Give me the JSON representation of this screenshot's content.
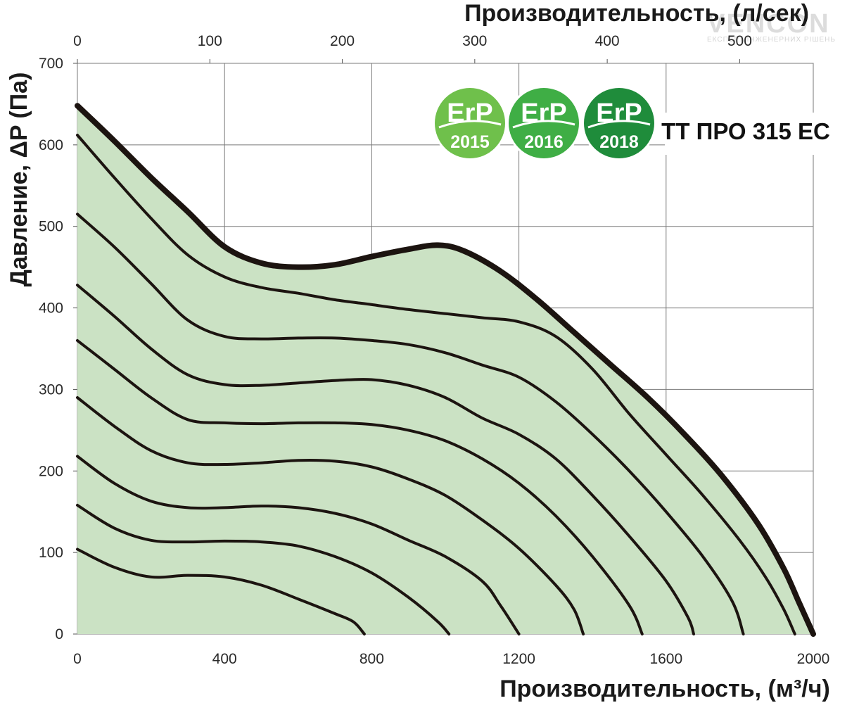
{
  "chart_data": {
    "type": "line",
    "title": "ТТ ПРО 315 ЕС",
    "xlabel": "Производительность, (м³/ч)",
    "x2label": "Производительность, (л/сек)",
    "ylabel": "Давление, ΔP (Па)",
    "xlim": [
      0,
      2000
    ],
    "ylim": [
      0,
      700
    ],
    "x2lim": [
      0,
      555.56
    ],
    "xticks": [
      "0",
      "400",
      "800",
      "1200",
      "1600",
      "2000"
    ],
    "x2ticks": [
      "0",
      "100",
      "200",
      "300",
      "400",
      "500"
    ],
    "yticks": [
      "0",
      "100",
      "200",
      "300",
      "400",
      "500",
      "600",
      "700"
    ],
    "grid": true,
    "fill_color": "#cbe2c4",
    "curve_color": "#1c1410",
    "badges": [
      {
        "top": "ErP",
        "year": "2015",
        "color": "#6fc04b"
      },
      {
        "top": "ErP",
        "year": "2016",
        "color": "#3fae45"
      },
      {
        "top": "ErP",
        "year": "2018",
        "color": "#1f8c3b"
      }
    ],
    "watermark": {
      "brand": "VENCON",
      "tagline": "ЕКСПЕРТ ІНЖЕНЕРНИХ РІШЕНЬ"
    },
    "max_curve": {
      "x": [
        0,
        100,
        200,
        300,
        400,
        500,
        600,
        700,
        800,
        900,
        980,
        1050,
        1150,
        1250,
        1350,
        1450,
        1550,
        1650,
        1750,
        1850,
        1920,
        1960,
        1985,
        2000
      ],
      "y": [
        648,
        605,
        560,
        518,
        475,
        455,
        450,
        453,
        463,
        472,
        477,
        470,
        445,
        410,
        370,
        330,
        290,
        245,
        195,
        135,
        80,
        40,
        15,
        0
      ]
    },
    "series": [
      {
        "x": [
          0,
          100,
          200,
          300,
          400,
          500,
          600,
          700,
          800,
          900,
          1000,
          1100,
          1200,
          1300,
          1400,
          1500,
          1600,
          1700,
          1800,
          1870,
          1920,
          1950
        ],
        "y": [
          612,
          560,
          510,
          465,
          438,
          425,
          418,
          410,
          404,
          398,
          393,
          388,
          383,
          365,
          325,
          270,
          220,
          170,
          115,
          70,
          30,
          0
        ]
      },
      {
        "x": [
          0,
          100,
          200,
          300,
          400,
          500,
          600,
          700,
          800,
          900,
          1000,
          1100,
          1200,
          1300,
          1400,
          1500,
          1600,
          1700,
          1780,
          1810
        ],
        "y": [
          515,
          475,
          430,
          385,
          365,
          362,
          363,
          363,
          360,
          355,
          345,
          330,
          315,
          285,
          245,
          200,
          150,
          95,
          40,
          0
        ]
      },
      {
        "x": [
          0,
          100,
          200,
          300,
          400,
          500,
          600,
          700,
          800,
          900,
          1000,
          1100,
          1200,
          1300,
          1400,
          1500,
          1600,
          1660,
          1675
        ],
        "y": [
          428,
          390,
          350,
          318,
          306,
          305,
          308,
          311,
          312,
          305,
          290,
          265,
          245,
          215,
          170,
          120,
          65,
          20,
          0
        ]
      },
      {
        "x": [
          0,
          100,
          200,
          300,
          400,
          500,
          600,
          700,
          800,
          900,
          1000,
          1100,
          1200,
          1300,
          1400,
          1500,
          1535
        ],
        "y": [
          360,
          325,
          290,
          263,
          259,
          258,
          259,
          259,
          257,
          250,
          237,
          215,
          185,
          145,
          95,
          35,
          0
        ]
      },
      {
        "x": [
          0,
          100,
          200,
          300,
          400,
          500,
          600,
          700,
          800,
          900,
          1000,
          1100,
          1200,
          1300,
          1350,
          1375
        ],
        "y": [
          290,
          255,
          225,
          210,
          208,
          210,
          213,
          212,
          205,
          190,
          170,
          140,
          105,
          60,
          30,
          0
        ]
      },
      {
        "x": [
          0,
          100,
          200,
          300,
          400,
          500,
          600,
          700,
          800,
          900,
          1000,
          1100,
          1150,
          1200
        ],
        "y": [
          218,
          185,
          163,
          155,
          155,
          157,
          155,
          148,
          135,
          115,
          95,
          65,
          35,
          0
        ]
      },
      {
        "x": [
          0,
          100,
          200,
          300,
          400,
          500,
          600,
          700,
          800,
          900,
          980,
          1010
        ],
        "y": [
          158,
          130,
          115,
          113,
          114,
          113,
          108,
          95,
          75,
          45,
          15,
          0
        ]
      },
      {
        "x": [
          0,
          100,
          200,
          300,
          400,
          500,
          600,
          700,
          750,
          780
        ],
        "y": [
          104,
          82,
          70,
          72,
          70,
          60,
          43,
          25,
          15,
          0
        ]
      }
    ]
  }
}
